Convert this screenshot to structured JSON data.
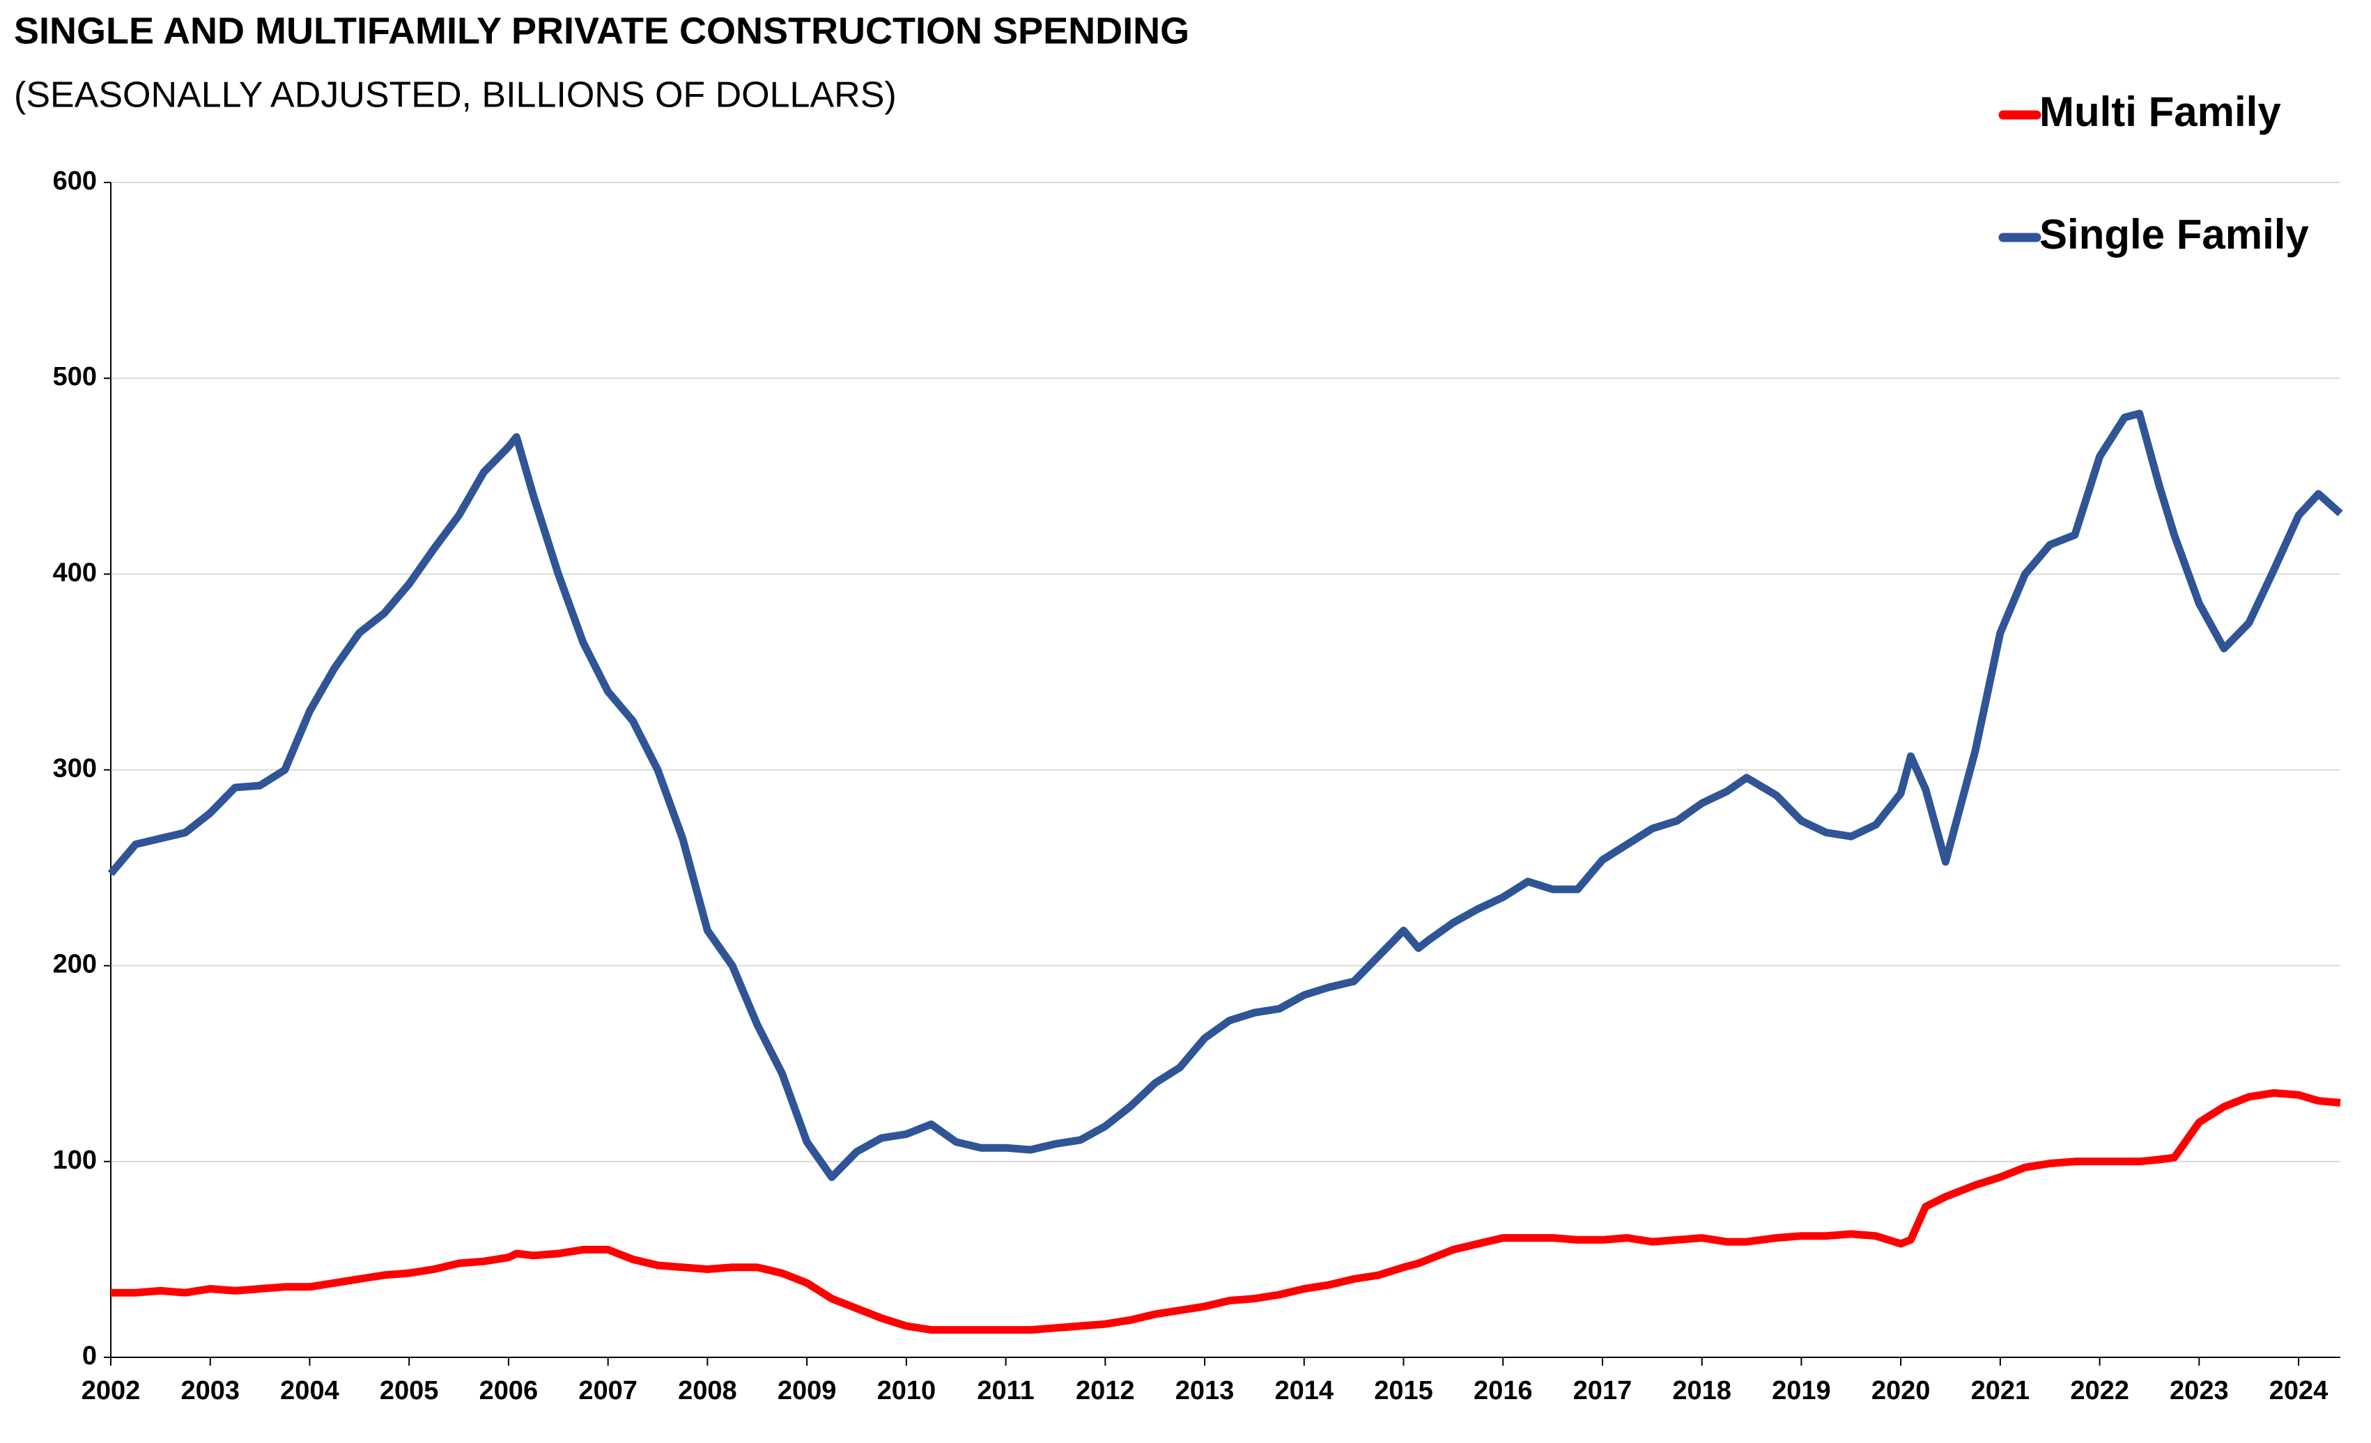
{
  "chart_data": {
    "type": "line",
    "title": "SINGLE AND MULTIFAMILY PRIVATE CONSTRUCTION SPENDING",
    "subtitle": "(SEASONALLY ADJUSTED, BILLIONS OF DOLLARS)",
    "x": [
      2002,
      2002.25,
      2002.5,
      2002.75,
      2003,
      2003.25,
      2003.5,
      2003.75,
      2004,
      2004.25,
      2004.5,
      2004.75,
      2005,
      2005.25,
      2005.5,
      2005.75,
      2006,
      2006.08,
      2006.25,
      2006.5,
      2006.75,
      2007,
      2007.25,
      2007.5,
      2007.75,
      2008,
      2008.25,
      2008.5,
      2008.75,
      2009,
      2009.25,
      2009.5,
      2009.75,
      2010,
      2010.25,
      2010.5,
      2010.75,
      2011,
      2011.25,
      2011.5,
      2011.75,
      2012,
      2012.25,
      2012.5,
      2012.75,
      2013,
      2013.25,
      2013.5,
      2013.75,
      2014,
      2014.25,
      2014.5,
      2014.75,
      2015,
      2015.15,
      2015.25,
      2015.5,
      2015.75,
      2016,
      2016.25,
      2016.5,
      2016.75,
      2017,
      2017.25,
      2017.5,
      2017.75,
      2018,
      2018.25,
      2018.45,
      2018.75,
      2019,
      2019.25,
      2019.5,
      2019.75,
      2020,
      2020.1,
      2020.25,
      2020.45,
      2020.75,
      2021,
      2021.25,
      2021.5,
      2021.75,
      2022,
      2022.25,
      2022.4,
      2022.6,
      2022.75,
      2023,
      2023.25,
      2023.5,
      2023.75,
      2024,
      2024.2,
      2024.42
    ],
    "series": [
      {
        "name": "Multi Family",
        "color": "#ff0000",
        "values": [
          33,
          33,
          34,
          33,
          35,
          34,
          35,
          36,
          36,
          38,
          40,
          42,
          43,
          45,
          48,
          49,
          51,
          53,
          52,
          53,
          55,
          55,
          50,
          47,
          46,
          45,
          46,
          46,
          43,
          38,
          30,
          25,
          20,
          16,
          14,
          14,
          14,
          14,
          14,
          15,
          16,
          17,
          19,
          22,
          24,
          26,
          29,
          30,
          32,
          35,
          37,
          40,
          42,
          46,
          48,
          50,
          55,
          58,
          61,
          61,
          61,
          60,
          60,
          61,
          59,
          60,
          61,
          59,
          59,
          61,
          62,
          62,
          63,
          62,
          58,
          60,
          77,
          82,
          88,
          92,
          97,
          99,
          100,
          100,
          100,
          100,
          101,
          102,
          120,
          128,
          133,
          135,
          134,
          131,
          130
        ]
      },
      {
        "name": "Single Family",
        "color": "#2f5597",
        "values": [
          247,
          262,
          265,
          268,
          278,
          291,
          292,
          300,
          330,
          352,
          370,
          380,
          395,
          413,
          430,
          452,
          465,
          470,
          440,
          400,
          365,
          340,
          325,
          300,
          265,
          218,
          200,
          170,
          145,
          110,
          92,
          105,
          112,
          114,
          119,
          110,
          107,
          107,
          106,
          109,
          111,
          118,
          128,
          140,
          148,
          163,
          172,
          176,
          178,
          185,
          189,
          192,
          205,
          218,
          209,
          213,
          222,
          229,
          235,
          243,
          239,
          239,
          254,
          262,
          270,
          274,
          283,
          289,
          296,
          287,
          274,
          268,
          266,
          272,
          288,
          307,
          290,
          253,
          310,
          370,
          400,
          415,
          420,
          460,
          480,
          482,
          445,
          420,
          385,
          362,
          375,
          402,
          430,
          441,
          431
        ]
      }
    ],
    "xlim": [
      2002,
      2024.42
    ],
    "xticks": [
      2002,
      2003,
      2004,
      2005,
      2006,
      2007,
      2008,
      2009,
      2010,
      2011,
      2012,
      2013,
      2014,
      2015,
      2016,
      2017,
      2018,
      2019,
      2020,
      2021,
      2022,
      2023,
      2024
    ],
    "ylim": [
      0,
      600
    ],
    "yticks": [
      0,
      100,
      200,
      300,
      400,
      500,
      600
    ],
    "grid": true,
    "legend": "upper right"
  }
}
